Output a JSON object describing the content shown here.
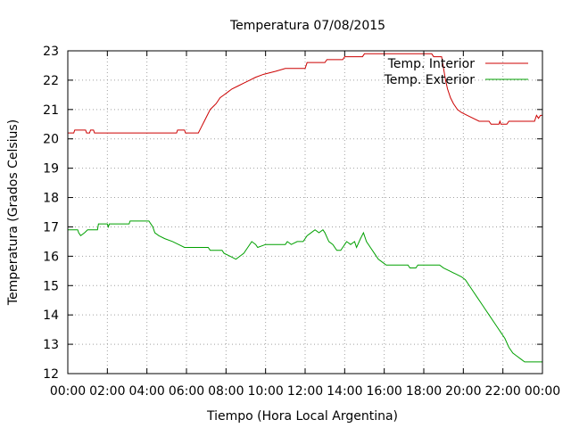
{
  "chart_data": {
    "type": "line",
    "title": "Temperatura 07/08/2015",
    "xlabel": "Tiempo (Hora Local Argentina)",
    "ylabel": "Temperatura (Grados Celsius)",
    "xlim": [
      0,
      24
    ],
    "ylim": [
      12,
      23
    ],
    "x_ticks": [
      {
        "value": 0,
        "label": "00:00"
      },
      {
        "value": 2,
        "label": "02:00"
      },
      {
        "value": 4,
        "label": "04:00"
      },
      {
        "value": 6,
        "label": "06:00"
      },
      {
        "value": 8,
        "label": "08:00"
      },
      {
        "value": 10,
        "label": "10:00"
      },
      {
        "value": 12,
        "label": "12:00"
      },
      {
        "value": 14,
        "label": "14:00"
      },
      {
        "value": 16,
        "label": "16:00"
      },
      {
        "value": 18,
        "label": "18:00"
      },
      {
        "value": 20,
        "label": "20:00"
      },
      {
        "value": 22,
        "label": "22:00"
      },
      {
        "value": 24,
        "label": "00:00"
      }
    ],
    "y_ticks": [
      {
        "value": 12,
        "label": "12"
      },
      {
        "value": 13,
        "label": "13"
      },
      {
        "value": 14,
        "label": "14"
      },
      {
        "value": 15,
        "label": "15"
      },
      {
        "value": 16,
        "label": "16"
      },
      {
        "value": 17,
        "label": "17"
      },
      {
        "value": 18,
        "label": "18"
      },
      {
        "value": 19,
        "label": "19"
      },
      {
        "value": 20,
        "label": "20"
      },
      {
        "value": 21,
        "label": "21"
      },
      {
        "value": 22,
        "label": "22"
      },
      {
        "value": 23,
        "label": "23"
      }
    ],
    "grid": true,
    "legend": "top-right",
    "series": [
      {
        "name": "Temp. Interior",
        "color": "#cc0000",
        "points": [
          [
            0.0,
            20.2
          ],
          [
            0.3,
            20.2
          ],
          [
            0.35,
            20.3
          ],
          [
            0.9,
            20.3
          ],
          [
            0.95,
            20.2
          ],
          [
            1.1,
            20.2
          ],
          [
            1.15,
            20.3
          ],
          [
            1.3,
            20.3
          ],
          [
            1.35,
            20.2
          ],
          [
            5.5,
            20.2
          ],
          [
            5.55,
            20.3
          ],
          [
            5.9,
            20.3
          ],
          [
            5.95,
            20.2
          ],
          [
            6.6,
            20.2
          ],
          [
            6.75,
            20.4
          ],
          [
            6.9,
            20.6
          ],
          [
            7.05,
            20.8
          ],
          [
            7.2,
            21.0
          ],
          [
            7.35,
            21.1
          ],
          [
            7.5,
            21.2
          ],
          [
            7.7,
            21.4
          ],
          [
            7.9,
            21.5
          ],
          [
            8.1,
            21.6
          ],
          [
            8.3,
            21.7
          ],
          [
            8.6,
            21.8
          ],
          [
            8.9,
            21.9
          ],
          [
            9.2,
            22.0
          ],
          [
            9.5,
            22.1
          ],
          [
            9.9,
            22.2
          ],
          [
            10.5,
            22.3
          ],
          [
            11.0,
            22.4
          ],
          [
            12.0,
            22.4
          ],
          [
            12.1,
            22.6
          ],
          [
            13.0,
            22.6
          ],
          [
            13.1,
            22.7
          ],
          [
            13.9,
            22.7
          ],
          [
            14.0,
            22.8
          ],
          [
            14.9,
            22.8
          ],
          [
            15.0,
            22.9
          ],
          [
            18.4,
            22.9
          ],
          [
            18.5,
            22.8
          ],
          [
            18.9,
            22.8
          ],
          [
            19.0,
            22.4
          ],
          [
            19.1,
            22.0
          ],
          [
            19.2,
            21.7
          ],
          [
            19.35,
            21.4
          ],
          [
            19.5,
            21.2
          ],
          [
            19.7,
            21.0
          ],
          [
            19.9,
            20.9
          ],
          [
            20.2,
            20.8
          ],
          [
            20.5,
            20.7
          ],
          [
            20.8,
            20.6
          ],
          [
            21.3,
            20.6
          ],
          [
            21.4,
            20.5
          ],
          [
            21.8,
            20.5
          ],
          [
            21.85,
            20.6
          ],
          [
            21.9,
            20.5
          ],
          [
            22.2,
            20.5
          ],
          [
            22.3,
            20.6
          ],
          [
            23.6,
            20.6
          ],
          [
            23.7,
            20.8
          ],
          [
            23.8,
            20.7
          ],
          [
            23.9,
            20.8
          ],
          [
            24.0,
            20.8
          ]
        ]
      },
      {
        "name": "Temp. Exterior",
        "color": "#00a000",
        "points": [
          [
            0.0,
            16.9
          ],
          [
            0.5,
            16.9
          ],
          [
            0.55,
            16.8
          ],
          [
            0.65,
            16.7
          ],
          [
            0.85,
            16.8
          ],
          [
            1.0,
            16.9
          ],
          [
            1.5,
            16.9
          ],
          [
            1.55,
            17.1
          ],
          [
            2.0,
            17.1
          ],
          [
            2.05,
            17.0
          ],
          [
            2.1,
            17.1
          ],
          [
            3.1,
            17.1
          ],
          [
            3.15,
            17.2
          ],
          [
            4.1,
            17.2
          ],
          [
            4.2,
            17.1
          ],
          [
            4.3,
            17.0
          ],
          [
            4.4,
            16.8
          ],
          [
            4.6,
            16.7
          ],
          [
            4.9,
            16.6
          ],
          [
            5.3,
            16.5
          ],
          [
            5.6,
            16.4
          ],
          [
            5.9,
            16.3
          ],
          [
            7.1,
            16.3
          ],
          [
            7.2,
            16.2
          ],
          [
            7.8,
            16.2
          ],
          [
            7.9,
            16.1
          ],
          [
            8.2,
            16.0
          ],
          [
            8.5,
            15.9
          ],
          [
            8.7,
            16.0
          ],
          [
            8.9,
            16.1
          ],
          [
            9.1,
            16.3
          ],
          [
            9.3,
            16.5
          ],
          [
            9.5,
            16.4
          ],
          [
            9.6,
            16.3
          ],
          [
            10.0,
            16.4
          ],
          [
            11.0,
            16.4
          ],
          [
            11.1,
            16.5
          ],
          [
            11.3,
            16.4
          ],
          [
            11.6,
            16.5
          ],
          [
            11.9,
            16.5
          ],
          [
            12.1,
            16.7
          ],
          [
            12.3,
            16.8
          ],
          [
            12.5,
            16.9
          ],
          [
            12.7,
            16.8
          ],
          [
            12.9,
            16.9
          ],
          [
            13.0,
            16.8
          ],
          [
            13.2,
            16.5
          ],
          [
            13.4,
            16.4
          ],
          [
            13.6,
            16.2
          ],
          [
            13.8,
            16.2
          ],
          [
            13.9,
            16.3
          ],
          [
            14.1,
            16.5
          ],
          [
            14.3,
            16.4
          ],
          [
            14.5,
            16.5
          ],
          [
            14.6,
            16.3
          ],
          [
            14.8,
            16.6
          ],
          [
            14.95,
            16.8
          ],
          [
            15.1,
            16.5
          ],
          [
            15.3,
            16.3
          ],
          [
            15.5,
            16.1
          ],
          [
            15.7,
            15.9
          ],
          [
            15.9,
            15.8
          ],
          [
            16.1,
            15.7
          ],
          [
            17.2,
            15.7
          ],
          [
            17.3,
            15.6
          ],
          [
            17.6,
            15.6
          ],
          [
            17.7,
            15.7
          ],
          [
            18.8,
            15.7
          ],
          [
            19.0,
            15.6
          ],
          [
            19.3,
            15.5
          ],
          [
            19.6,
            15.4
          ],
          [
            19.9,
            15.3
          ],
          [
            20.1,
            15.2
          ],
          [
            20.3,
            15.0
          ],
          [
            20.5,
            14.8
          ],
          [
            20.7,
            14.6
          ],
          [
            20.9,
            14.4
          ],
          [
            21.1,
            14.2
          ],
          [
            21.3,
            14.0
          ],
          [
            21.5,
            13.8
          ],
          [
            21.7,
            13.6
          ],
          [
            21.9,
            13.4
          ],
          [
            22.1,
            13.2
          ],
          [
            22.3,
            12.9
          ],
          [
            22.5,
            12.7
          ],
          [
            22.7,
            12.6
          ],
          [
            22.9,
            12.5
          ],
          [
            23.1,
            12.4
          ],
          [
            23.3,
            12.4
          ],
          [
            23.5,
            12.4
          ],
          [
            24.0,
            12.4
          ]
        ]
      }
    ]
  }
}
